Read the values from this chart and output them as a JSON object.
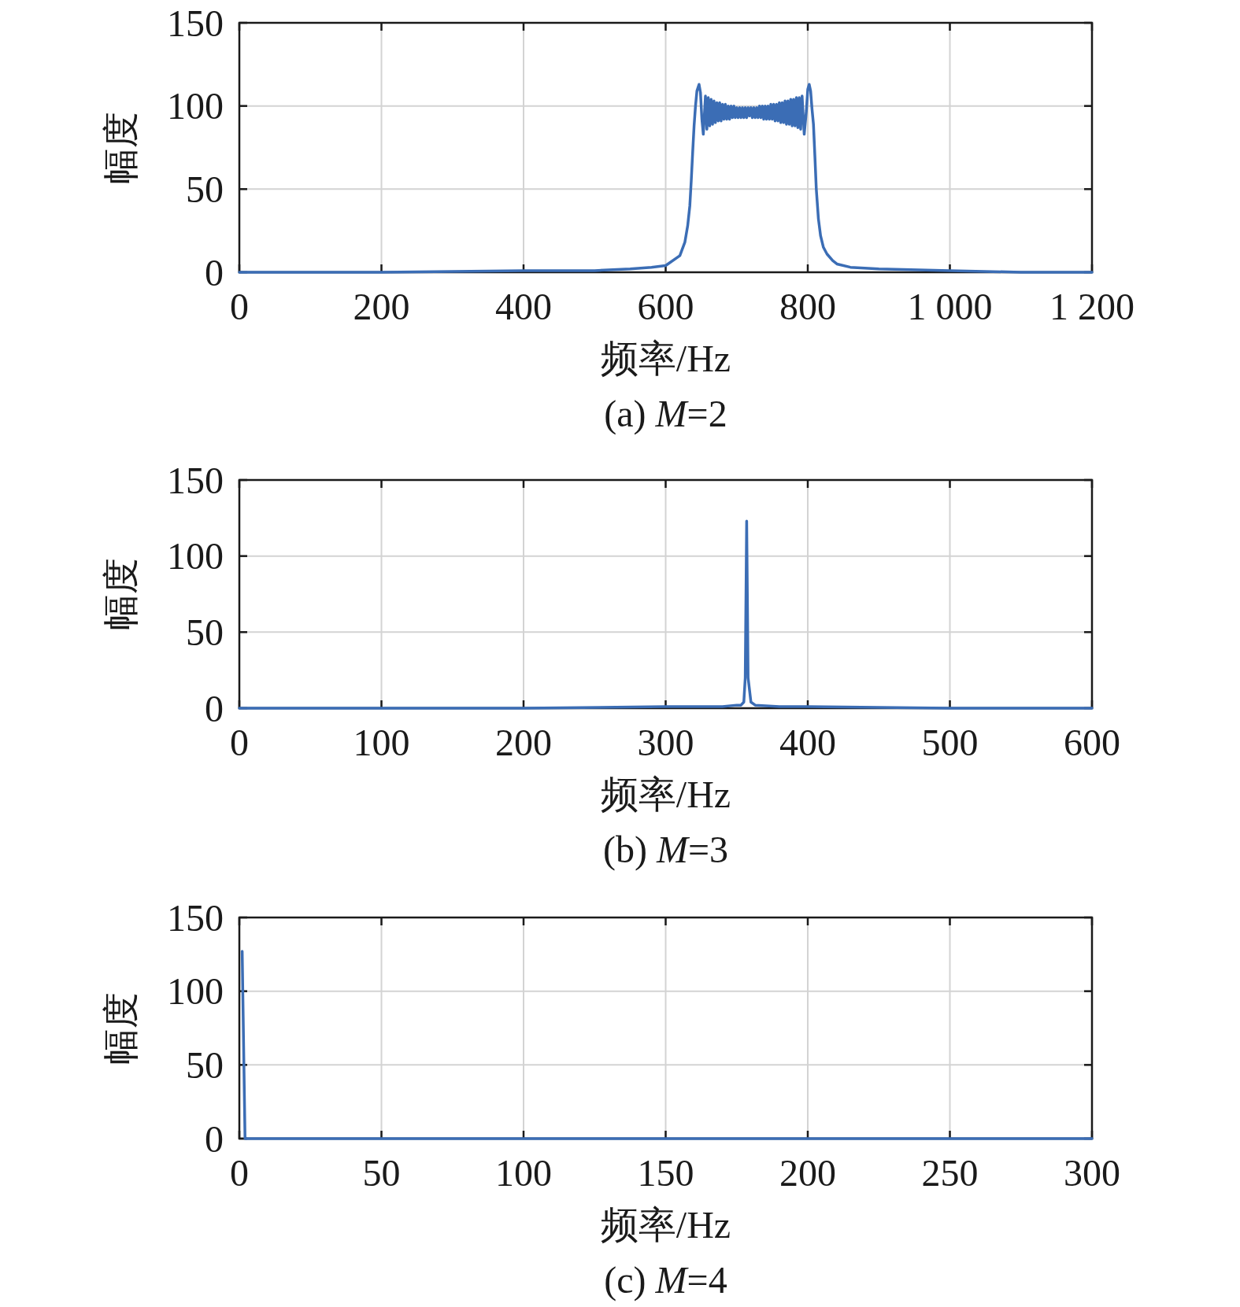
{
  "chart_data": [
    {
      "type": "line",
      "title": "(a) M=2",
      "xlabel": "频率/Hz",
      "ylabel": "幅度",
      "color": "#3b6db5",
      "grid": true,
      "xlim": [
        0,
        1200
      ],
      "ylim": [
        0,
        150
      ],
      "xticks": [
        0,
        200,
        400,
        600,
        800,
        {
          "value": 1000,
          "label": "1 000"
        },
        {
          "value": 1200,
          "label": "1 200"
        }
      ],
      "yticks": [
        0,
        50,
        100,
        150
      ],
      "x": [
        0,
        200,
        400,
        500,
        550,
        580,
        600,
        620,
        627,
        631,
        634,
        636,
        638,
        640,
        642,
        644,
        647,
        649,
        651,
        653,
        656,
        658,
        660,
        662,
        664,
        666,
        668,
        670,
        672,
        674,
        676,
        678,
        680,
        682,
        684,
        686,
        688,
        690,
        692,
        694,
        696,
        698,
        700,
        702,
        704,
        706,
        708,
        710,
        712,
        714,
        716,
        718,
        720,
        722,
        724,
        726,
        728,
        730,
        732,
        734,
        736,
        738,
        740,
        742,
        744,
        746,
        748,
        750,
        752,
        754,
        756,
        758,
        760,
        762,
        764,
        766,
        768,
        770,
        772,
        774,
        776,
        778,
        780,
        782,
        784,
        786,
        788,
        790,
        792,
        795,
        798,
        800,
        802,
        804,
        806,
        808,
        810,
        812,
        815,
        818,
        822,
        827,
        835,
        841,
        860,
        900,
        1000,
        1100,
        1200
      ],
      "values": [
        0,
        0,
        1,
        1,
        2,
        3,
        4,
        10,
        18,
        28,
        40,
        55,
        72,
        88,
        100,
        109,
        113,
        108,
        92,
        83,
        106,
        86,
        105,
        88,
        104,
        89,
        103,
        90,
        102,
        91,
        102,
        91,
        101,
        92,
        101,
        92,
        100,
        92,
        100,
        93,
        100,
        93,
        99,
        93,
        99,
        93,
        99,
        93,
        99,
        93,
        99,
        94,
        99,
        93,
        99,
        93,
        99,
        93,
        100,
        93,
        100,
        92,
        100,
        92,
        100,
        92,
        101,
        92,
        101,
        91,
        101,
        91,
        102,
        90,
        102,
        90,
        103,
        89,
        103,
        89,
        104,
        88,
        104,
        88,
        105,
        87,
        105,
        86,
        106,
        83,
        97,
        110,
        113,
        109,
        98,
        89,
        70,
        50,
        32,
        22,
        15,
        11,
        7,
        5,
        3,
        2,
        1,
        0,
        0
      ]
    },
    {
      "type": "line",
      "title": "(b) M=3",
      "xlabel": "频率/Hz",
      "ylabel": "幅度",
      "color": "#3b6db5",
      "grid": true,
      "xlim": [
        0,
        600
      ],
      "ylim": [
        0,
        150
      ],
      "xticks": [
        0,
        100,
        200,
        300,
        400,
        500,
        600
      ],
      "yticks": [
        0,
        50,
        100,
        150
      ],
      "x": [
        0,
        100,
        200,
        300,
        340,
        350,
        353,
        355,
        356,
        357,
        358,
        360,
        363,
        380,
        400,
        500,
        600
      ],
      "values": [
        0,
        0,
        0,
        1,
        1,
        2,
        2,
        4,
        20,
        123,
        20,
        4,
        2,
        1,
        1,
        0,
        0
      ]
    },
    {
      "type": "line",
      "title": "(c) M=4",
      "xlabel": "频率/Hz",
      "ylabel": "幅度",
      "color": "#3b6db5",
      "grid": true,
      "xlim": [
        0,
        300
      ],
      "ylim": [
        0,
        150
      ],
      "xticks": [
        0,
        50,
        100,
        150,
        200,
        250,
        300
      ],
      "yticks": [
        0,
        50,
        100,
        150
      ],
      "x": [
        1,
        2,
        300
      ],
      "values": [
        127,
        0,
        0
      ]
    }
  ]
}
